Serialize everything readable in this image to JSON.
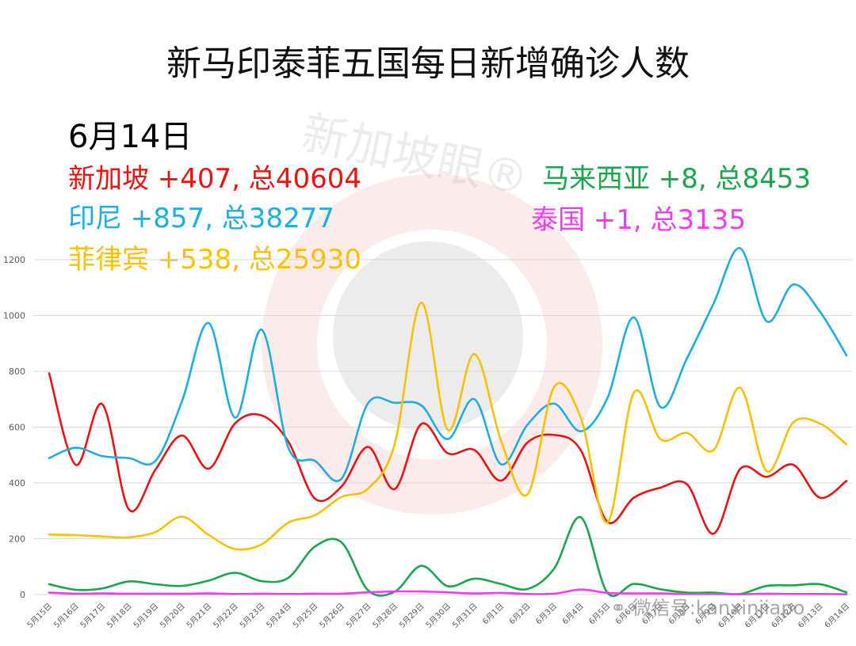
{
  "title": "新马印泰菲五国每日新增确诊人数",
  "date": "6月14日",
  "stats": [
    {
      "country": "新加坡",
      "text": "新加坡 +407, 总40604",
      "color": "#ee1111"
    },
    {
      "country": "印尼",
      "text": "印尼 +857, 总38277",
      "color": "#1aafe0"
    },
    {
      "country": "菲律宾",
      "text": "菲律宾 +538, 总25930",
      "color": "#f7c100"
    },
    {
      "country": "马来西亚",
      "text": "马来西亚 +8, 总8453",
      "color": "#1aa64e"
    },
    {
      "country": "泰国",
      "text": "泰国 +1, 总3135",
      "color": "#f03cf0"
    }
  ],
  "watermark": {
    "text": "新加坡眼®",
    "wechat": "微信号:kanxinjiapo"
  },
  "chart_data": {
    "type": "line",
    "title": "新马印泰菲五国每日新增确诊人数",
    "xlabel": "",
    "ylabel": "",
    "ylim": [
      0,
      1200
    ],
    "yticks": [
      0,
      200,
      400,
      600,
      800,
      1000,
      1200
    ],
    "grid": true,
    "smooth": true,
    "categories": [
      "5月15日",
      "5月16日",
      "5月17日",
      "5月18日",
      "5月19日",
      "5月20日",
      "5月21日",
      "5月22日",
      "5月23日",
      "5月24日",
      "5月25日",
      "5月26日",
      "5月27日",
      "5月28日",
      "5月29日",
      "5月30日",
      "5月31日",
      "6月1日",
      "6月2日",
      "6月3日",
      "6月4日",
      "6月5日",
      "6月6日",
      "6月7日",
      "6月8日",
      "6月9日",
      "6月10日",
      "6月11日",
      "6月12日",
      "6月13日",
      "6月14日"
    ],
    "series": [
      {
        "name": "新加坡",
        "color": "#ee1111",
        "values": [
          793,
          465,
          682,
          305,
          448,
          570,
          451,
          614,
          642,
          548,
          344,
          387,
          529,
          378,
          611,
          506,
          518,
          408,
          545,
          572,
          518,
          261,
          347,
          383,
          395,
          218,
          450,
          422,
          465,
          347,
          407
        ]
      },
      {
        "name": "印尼",
        "color": "#1aafe0",
        "values": [
          489,
          526,
          496,
          489,
          479,
          693,
          973,
          634,
          949,
          526,
          479,
          415,
          686,
          687,
          678,
          557,
          700,
          467,
          609,
          684,
          585,
          703,
          993,
          672,
          847,
          1043,
          1241,
          979,
          1111,
          1014,
          857
        ]
      },
      {
        "name": "菲律宾",
        "color": "#f7c100",
        "values": [
          215,
          213,
          208,
          205,
          224,
          279,
          214,
          163,
          180,
          258,
          284,
          350,
          380,
          539,
          1046,
          590,
          862,
          552,
          359,
          744,
          634,
          258,
          724,
          557,
          579,
          518,
          741,
          442,
          617,
          613,
          538
        ]
      },
      {
        "name": "马来西亚",
        "color": "#1aa64e",
        "values": [
          37,
          17,
          22,
          47,
          37,
          31,
          50,
          78,
          48,
          60,
          172,
          187,
          15,
          10,
          103,
          30,
          57,
          38,
          20,
          93,
          277,
          7,
          38,
          19,
          7,
          7,
          2,
          31,
          33,
          37,
          8
        ]
      },
      {
        "name": "泰国",
        "color": "#f03cf0",
        "values": [
          7,
          3,
          4,
          3,
          3,
          3,
          4,
          2,
          3,
          2,
          3,
          3,
          8,
          11,
          11,
          8,
          4,
          6,
          2,
          3,
          18,
          6,
          4,
          4,
          2,
          2,
          1,
          3,
          2,
          2,
          1
        ]
      }
    ]
  }
}
